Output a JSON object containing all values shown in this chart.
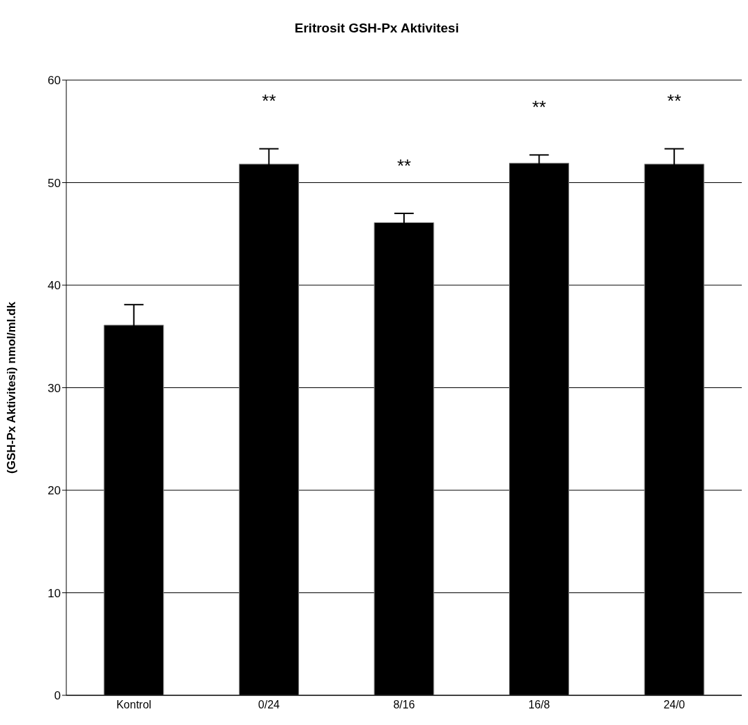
{
  "chart_data": {
    "type": "bar",
    "title": "Eritrosit GSH-Px Aktivitesi",
    "ylabel": "(GSH-Px Aktivitesi) nmol/ml.dk",
    "categories": [
      "Kontrol",
      "0/24",
      "8/16",
      "16/8",
      "24/0"
    ],
    "values": [
      36.1,
      51.8,
      46.1,
      51.9,
      51.8
    ],
    "errors": [
      2.0,
      1.5,
      0.9,
      0.8,
      1.5
    ],
    "color": "#000000",
    "ylim": [
      0,
      60
    ],
    "yticks": [
      0,
      10,
      20,
      30,
      40,
      50,
      60
    ],
    "grid": "y",
    "annotations": [
      "**",
      "**",
      "**",
      "**"
    ]
  }
}
